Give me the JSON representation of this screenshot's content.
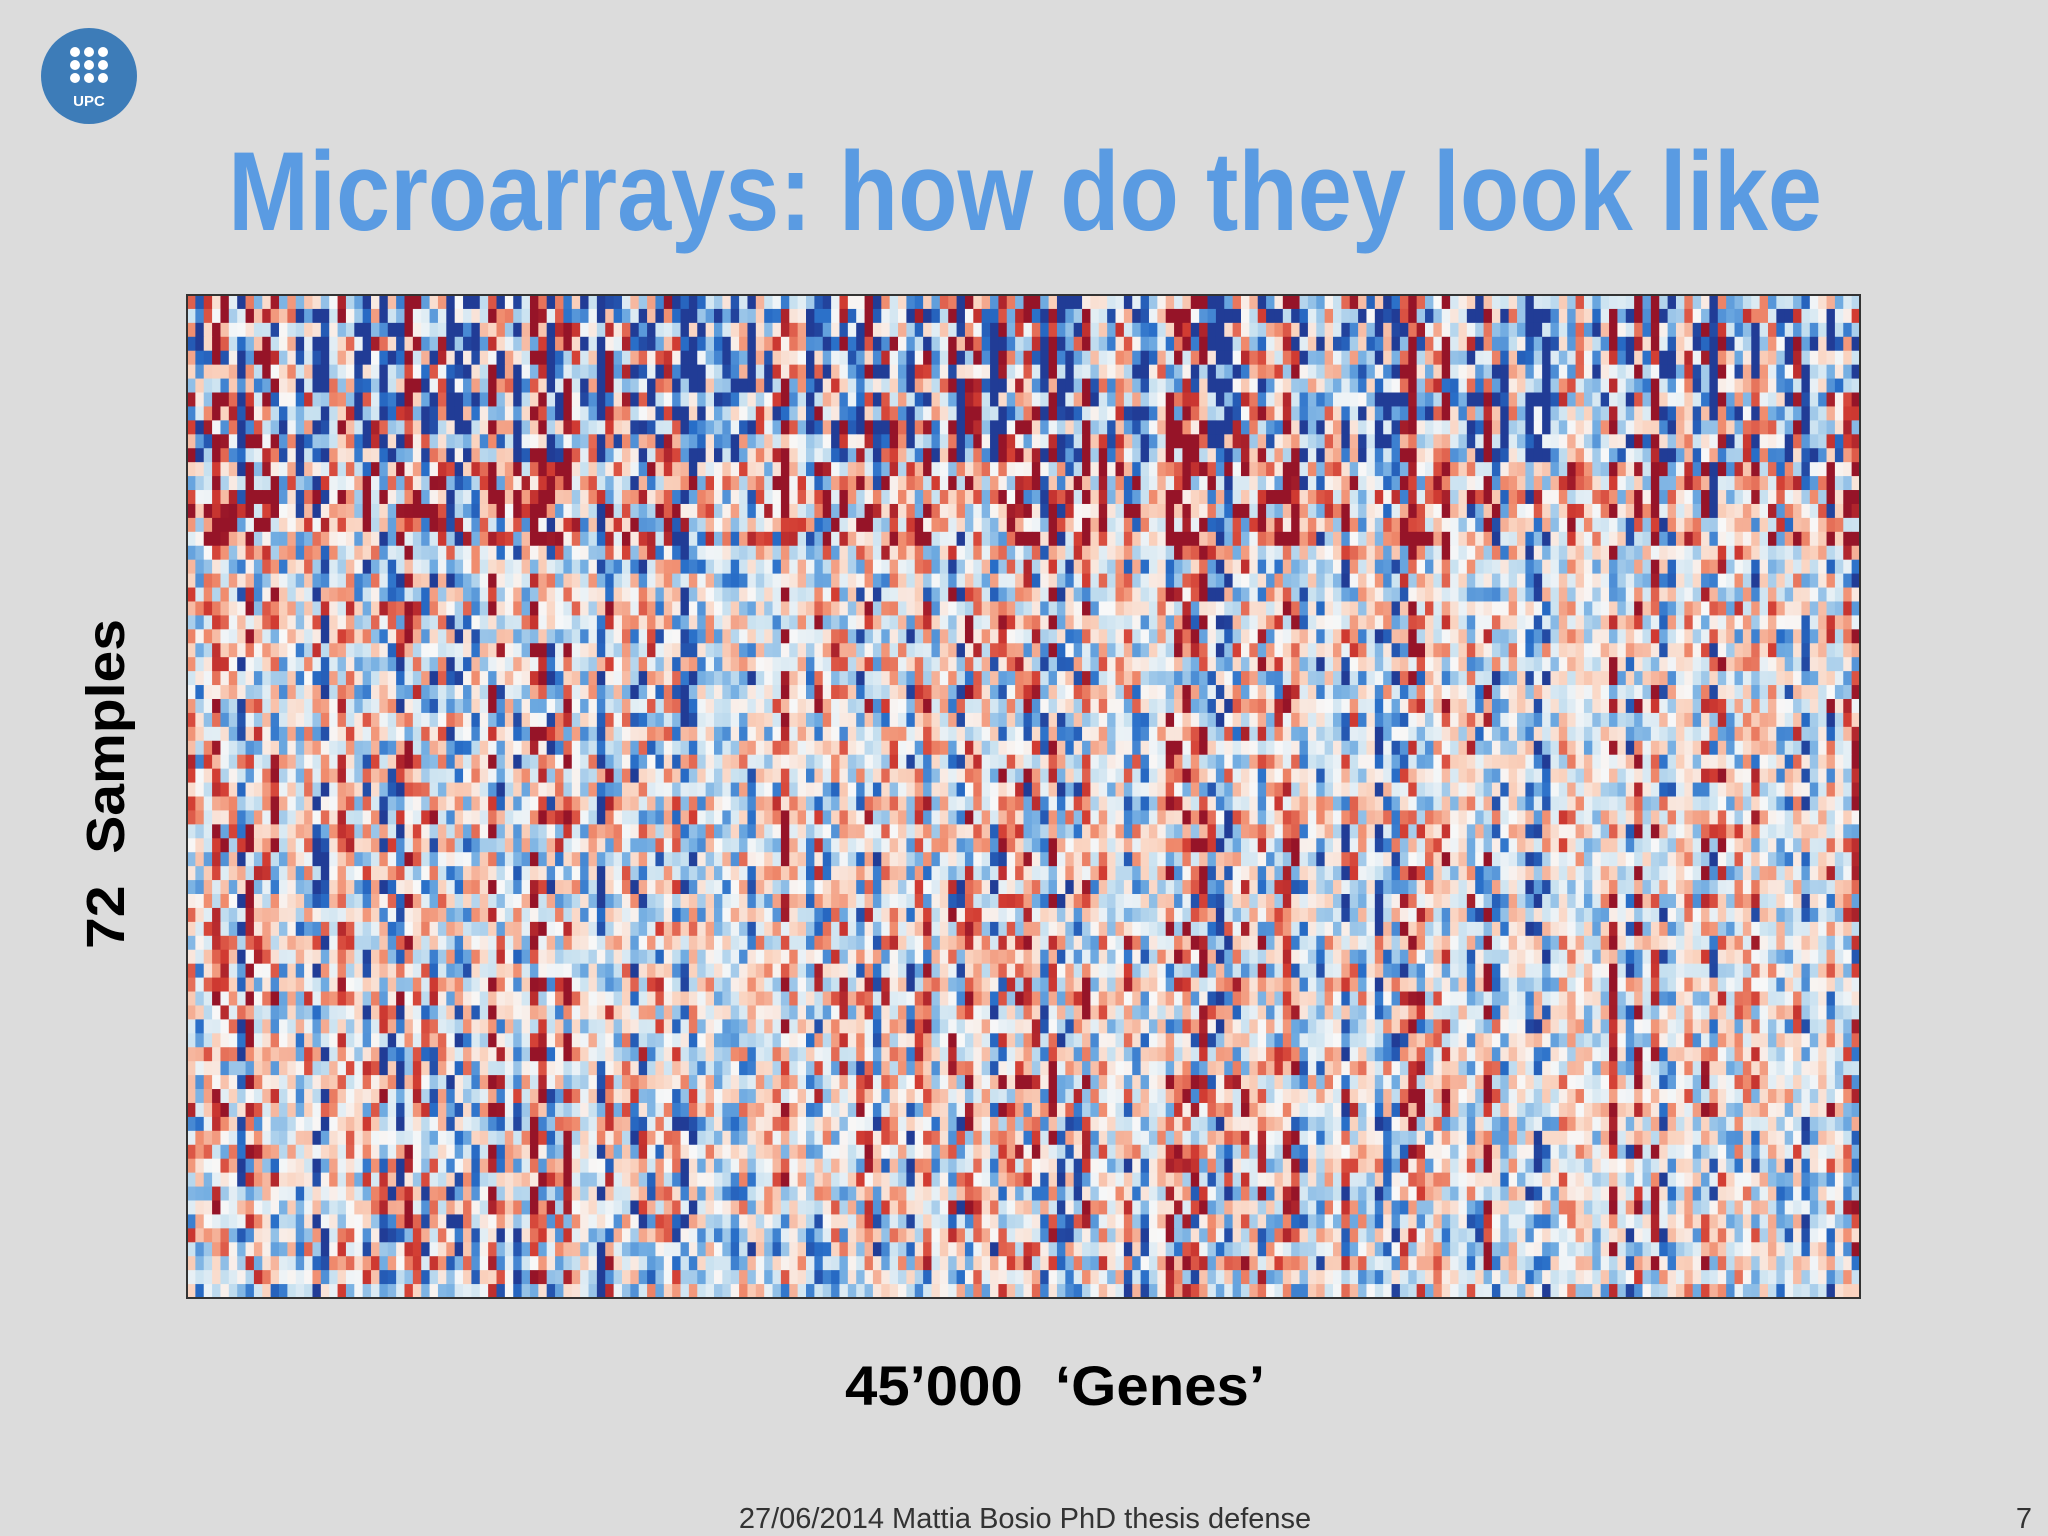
{
  "logo": {
    "text": "UPC"
  },
  "title": "Microarrays: how do they look like",
  "heatmap": {
    "y_label": "72  Samples",
    "x_label": "45’000  ‘Genes’"
  },
  "footer": {
    "text": "27/06/2014 Mattia Bosio PhD thesis defense",
    "page": "7"
  }
}
